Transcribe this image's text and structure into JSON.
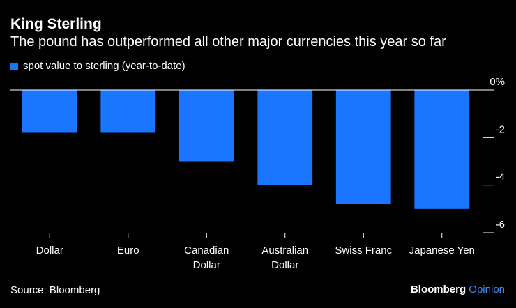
{
  "header": {
    "title": "King Sterling",
    "subtitle": "The pound has outperformed all other major currencies this year so far"
  },
  "legend": {
    "label": "spot value to sterling (year-to-date)"
  },
  "footer": {
    "source": "Source: Bloomberg",
    "brand_main": "Bloomberg",
    "brand_accent": "Opinion"
  },
  "colors": {
    "background": "#000000",
    "bar": "#1a75ff",
    "text": "#ffffff",
    "axis": "#ffffff",
    "brand_accent": "#3d8bff"
  },
  "chart_data": {
    "type": "bar",
    "categories": [
      [
        "Dollar"
      ],
      [
        "Euro"
      ],
      [
        "Canadian",
        "Dollar"
      ],
      [
        "Australian",
        "Dollar"
      ],
      [
        "Swiss Franc"
      ],
      [
        "Japanese Yen"
      ]
    ],
    "series": [
      {
        "name": "spot value to sterling (year-to-date)",
        "values": [
          -1.8,
          -1.8,
          -3.0,
          -4.0,
          -4.8,
          -5.0
        ]
      }
    ],
    "ylim": [
      -6,
      0
    ],
    "yticks": [
      0,
      -2,
      -4,
      -6
    ],
    "ytick_labels": [
      "0%",
      "-2",
      "-4",
      "-6"
    ],
    "y_axis_side": "right",
    "grid": false,
    "legend_position": "top-left"
  }
}
